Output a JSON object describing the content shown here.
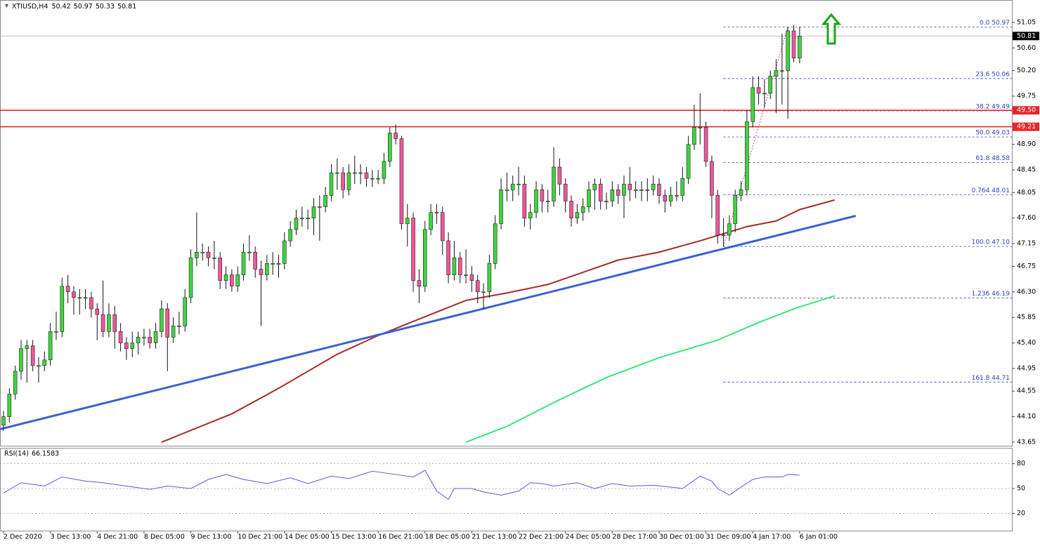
{
  "chart_data": {
    "type": "candlestick",
    "title": "XTIUSD,H4",
    "categories": [
      "2 Dec 2020",
      null,
      null,
      null,
      null,
      null,
      null,
      null,
      "3 Dec 13:00",
      null,
      null,
      null,
      null,
      null,
      null,
      null,
      "4 Dec 21:00",
      null,
      null,
      null,
      null,
      null,
      null,
      null,
      "8 Dec 05:00",
      null,
      null,
      null,
      null,
      null,
      null,
      null,
      "9 Dec 13:00",
      null,
      null,
      null,
      null,
      null,
      null,
      null,
      "10 Dec 21:00",
      null,
      null,
      null,
      null,
      null,
      null,
      null,
      "14 Dec 05:00",
      null,
      null,
      null,
      null,
      null,
      null,
      null,
      "15 Dec 13:00",
      null,
      null,
      null,
      null,
      null,
      null,
      null,
      "16 Dec 21:00",
      null,
      null,
      null,
      null,
      null,
      null,
      null,
      "18 Dec 05:00",
      null,
      null,
      null,
      null,
      null,
      null,
      null,
      "21 Dec 13:00",
      null,
      null,
      null,
      null,
      null,
      null,
      null,
      "22 Dec 21:00",
      null,
      null,
      null,
      null,
      null,
      null,
      null,
      "24 Dec 05:00",
      null,
      null,
      null,
      null,
      null,
      null,
      null,
      "28 Dec 17:00",
      null,
      null,
      null,
      null,
      null,
      null,
      null,
      "30 Dec 01:00",
      null,
      null,
      null,
      null,
      null,
      null,
      null,
      "31 Dec 09:00",
      null,
      null,
      null,
      null,
      null,
      null,
      null,
      "4 Jan 17:00",
      null,
      null,
      null,
      null,
      null,
      null,
      null,
      "6 Jan 01:00"
    ],
    "candles": [
      [
        43.95,
        44.2,
        43.85,
        44.1
      ],
      [
        44.1,
        44.6,
        44.0,
        44.5
      ],
      [
        44.5,
        45.0,
        44.4,
        44.9
      ],
      [
        44.9,
        45.45,
        44.75,
        45.3
      ],
      [
        45.3,
        45.45,
        44.7,
        45.35
      ],
      [
        45.35,
        45.45,
        44.9,
        45.0
      ],
      [
        45.0,
        45.15,
        44.7,
        45.0
      ],
      [
        45.0,
        45.25,
        44.9,
        45.1
      ],
      [
        45.1,
        45.75,
        45.0,
        45.6
      ],
      [
        45.6,
        45.95,
        45.45,
        45.6
      ],
      [
        45.6,
        46.55,
        45.5,
        46.4
      ],
      [
        46.4,
        46.6,
        46.1,
        46.3
      ],
      [
        46.3,
        46.4,
        45.9,
        46.2
      ],
      [
        46.2,
        46.35,
        45.9,
        46.2
      ],
      [
        46.2,
        46.35,
        46.0,
        46.2
      ],
      [
        46.2,
        46.3,
        45.85,
        46.0
      ],
      [
        46.0,
        46.1,
        45.45,
        45.9
      ],
      [
        45.9,
        46.5,
        45.5,
        45.6
      ],
      [
        45.6,
        46.1,
        45.5,
        45.9
      ],
      [
        45.9,
        46.05,
        45.3,
        45.6
      ],
      [
        45.6,
        45.75,
        45.25,
        45.4
      ],
      [
        45.4,
        45.5,
        45.1,
        45.3
      ],
      [
        45.3,
        45.6,
        45.15,
        45.4
      ],
      [
        45.4,
        45.6,
        45.2,
        45.5
      ],
      [
        45.5,
        45.65,
        45.35,
        45.5
      ],
      [
        45.5,
        45.65,
        45.3,
        45.4
      ],
      [
        45.4,
        45.75,
        45.3,
        45.6
      ],
      [
        45.6,
        46.15,
        45.5,
        46.0
      ],
      [
        46.0,
        46.1,
        44.9,
        45.5
      ],
      [
        45.5,
        45.85,
        45.4,
        45.7
      ],
      [
        45.7,
        45.95,
        45.55,
        45.7
      ],
      [
        45.7,
        46.35,
        45.6,
        46.2
      ],
      [
        46.2,
        47.05,
        46.1,
        46.9
      ],
      [
        46.9,
        47.7,
        46.75,
        47.0
      ],
      [
        47.0,
        47.15,
        46.85,
        47.0
      ],
      [
        47.0,
        47.1,
        46.75,
        46.9
      ],
      [
        46.9,
        47.2,
        46.7,
        46.9
      ],
      [
        46.9,
        47.0,
        46.35,
        46.5
      ],
      [
        46.5,
        46.75,
        46.35,
        46.6
      ],
      [
        46.6,
        46.7,
        46.3,
        46.4
      ],
      [
        46.4,
        46.75,
        46.3,
        46.6
      ],
      [
        46.6,
        47.15,
        46.5,
        47.0
      ],
      [
        47.0,
        47.3,
        46.85,
        47.0
      ],
      [
        47.0,
        47.1,
        46.55,
        46.7
      ],
      [
        46.7,
        46.85,
        45.7,
        46.6
      ],
      [
        46.6,
        46.95,
        46.5,
        46.8
      ],
      [
        46.8,
        47.0,
        46.6,
        46.8
      ],
      [
        46.8,
        46.95,
        46.55,
        46.8
      ],
      [
        46.8,
        47.35,
        46.7,
        47.2
      ],
      [
        47.2,
        47.55,
        47.1,
        47.4
      ],
      [
        47.4,
        47.75,
        47.3,
        47.6
      ],
      [
        47.6,
        47.8,
        47.45,
        47.6
      ],
      [
        47.6,
        47.75,
        47.4,
        47.6
      ],
      [
        47.6,
        47.95,
        47.3,
        47.8
      ],
      [
        47.8,
        48.0,
        47.2,
        47.8
      ],
      [
        47.8,
        48.15,
        47.7,
        48.0
      ],
      [
        48.0,
        48.55,
        47.9,
        48.4
      ],
      [
        48.4,
        48.65,
        48.1,
        48.4
      ],
      [
        48.4,
        48.5,
        47.95,
        48.1
      ],
      [
        48.1,
        48.55,
        48.0,
        48.4
      ],
      [
        48.4,
        48.7,
        48.2,
        48.4
      ],
      [
        48.4,
        48.55,
        48.2,
        48.4
      ],
      [
        48.4,
        48.5,
        48.15,
        48.3
      ],
      [
        48.3,
        48.45,
        48.15,
        48.3
      ],
      [
        48.3,
        48.45,
        48.2,
        48.3
      ],
      [
        48.3,
        48.75,
        48.2,
        48.6
      ],
      [
        48.6,
        49.2,
        48.5,
        49.1
      ],
      [
        49.1,
        49.25,
        48.9,
        49.0
      ],
      [
        49.0,
        49.05,
        47.4,
        47.5
      ],
      [
        47.5,
        47.85,
        47.1,
        47.6
      ],
      [
        47.6,
        47.7,
        46.3,
        46.5
      ],
      [
        46.5,
        46.7,
        46.1,
        46.4
      ],
      [
        46.4,
        47.55,
        46.3,
        47.4
      ],
      [
        47.4,
        47.85,
        47.3,
        47.7
      ],
      [
        47.7,
        47.85,
        47.5,
        47.7
      ],
      [
        47.7,
        47.8,
        46.95,
        47.2
      ],
      [
        47.2,
        47.35,
        46.45,
        46.6
      ],
      [
        46.6,
        47.2,
        46.5,
        46.9
      ],
      [
        46.9,
        47.0,
        46.45,
        46.6
      ],
      [
        46.6,
        47.05,
        46.45,
        46.6
      ],
      [
        46.6,
        46.75,
        46.3,
        46.5
      ],
      [
        46.5,
        46.6,
        46.1,
        46.3
      ],
      [
        46.3,
        46.45,
        46.0,
        46.3
      ],
      [
        46.3,
        46.95,
        46.2,
        46.8
      ],
      [
        46.8,
        47.65,
        46.7,
        47.5
      ],
      [
        47.5,
        48.3,
        47.4,
        48.1
      ],
      [
        48.1,
        48.4,
        47.9,
        48.1
      ],
      [
        48.1,
        48.35,
        47.9,
        48.2
      ],
      [
        48.2,
        48.5,
        48.0,
        48.2
      ],
      [
        48.2,
        48.35,
        47.45,
        47.6
      ],
      [
        47.6,
        47.85,
        47.4,
        47.7
      ],
      [
        47.7,
        48.25,
        47.6,
        48.1
      ],
      [
        48.1,
        48.2,
        47.7,
        47.9
      ],
      [
        47.9,
        48.1,
        47.7,
        47.9
      ],
      [
        47.9,
        48.85,
        47.8,
        48.5
      ],
      [
        48.5,
        48.65,
        48.0,
        48.2
      ],
      [
        48.2,
        48.3,
        47.7,
        47.9
      ],
      [
        47.9,
        48.0,
        47.45,
        47.6
      ],
      [
        47.6,
        47.85,
        47.5,
        47.7
      ],
      [
        47.7,
        47.95,
        47.55,
        47.8
      ],
      [
        47.8,
        48.25,
        47.7,
        48.1
      ],
      [
        48.1,
        48.3,
        47.75,
        48.2
      ],
      [
        48.2,
        48.3,
        47.75,
        47.9
      ],
      [
        47.9,
        48.05,
        47.75,
        47.9
      ],
      [
        47.9,
        48.25,
        47.8,
        48.1
      ],
      [
        48.1,
        48.2,
        47.85,
        48.0
      ],
      [
        48.0,
        48.35,
        47.6,
        48.2
      ],
      [
        48.2,
        48.5,
        47.9,
        48.1
      ],
      [
        48.1,
        48.25,
        47.95,
        48.1
      ],
      [
        48.1,
        48.25,
        47.9,
        48.1
      ],
      [
        48.1,
        48.3,
        47.9,
        48.1
      ],
      [
        48.1,
        48.35,
        48.0,
        48.2
      ],
      [
        48.2,
        48.3,
        47.85,
        48.0
      ],
      [
        48.0,
        48.1,
        47.7,
        47.9
      ],
      [
        47.9,
        48.15,
        47.8,
        48.0
      ],
      [
        48.0,
        48.25,
        47.9,
        48.0
      ],
      [
        48.0,
        48.5,
        47.9,
        48.3
      ],
      [
        48.3,
        49.05,
        48.2,
        48.9
      ],
      [
        48.9,
        49.6,
        48.8,
        49.2
      ],
      [
        49.2,
        49.8,
        48.9,
        49.2
      ],
      [
        49.2,
        49.3,
        48.5,
        48.6
      ],
      [
        48.6,
        48.7,
        47.6,
        48.0
      ],
      [
        48.0,
        48.1,
        47.15,
        47.3
      ],
      [
        47.3,
        47.6,
        47.1,
        47.3
      ],
      [
        47.3,
        47.65,
        47.2,
        47.5
      ],
      [
        47.5,
        48.1,
        47.35,
        48.0
      ],
      [
        48.0,
        48.25,
        47.9,
        48.1
      ],
      [
        48.1,
        49.5,
        48.0,
        49.3
      ],
      [
        49.3,
        50.1,
        49.2,
        49.9
      ],
      [
        49.9,
        50.1,
        49.6,
        49.8
      ],
      [
        49.8,
        50.05,
        49.55,
        49.8
      ],
      [
        49.8,
        50.2,
        49.7,
        50.1
      ],
      [
        50.1,
        50.4,
        49.45,
        50.2
      ],
      [
        50.2,
        50.85,
        49.6,
        50.2
      ],
      [
        50.2,
        50.97,
        49.35,
        50.9
      ],
      [
        50.9,
        51.0,
        50.35,
        50.42
      ],
      [
        50.42,
        50.97,
        50.33,
        50.81
      ]
    ],
    "up_color": "#3fd43f",
    "down_color": "#f0559c",
    "ylim": [
      43.6,
      51.42
    ],
    "yticks": [
      51.05,
      {
        "value": 50.6,
        "label": "50.60"
      },
      {
        "value": 50.2,
        "label": "50.20"
      },
      49.75,
      {
        "value": 48.9,
        "label": "48.90"
      },
      48.45,
      48.05,
      {
        "value": 47.6,
        "label": "47.60"
      },
      47.15,
      46.75,
      {
        "value": 46.3,
        "label": "46.30"
      },
      45.85,
      {
        "value": 45.4,
        "label": "45.40"
      },
      44.95,
      44.55,
      {
        "value": 44.1,
        "label": "44.10"
      },
      43.65
    ],
    "lines": [
      {
        "color": "#a52a2a",
        "x": [
          27,
          39,
          47,
          57,
          64,
          71,
          79,
          86,
          93,
          100,
          105,
          112,
          119,
          127,
          132,
          136,
          142
        ],
        "values": [
          43.65,
          44.15,
          44.6,
          45.2,
          45.53,
          45.82,
          46.15,
          46.28,
          46.43,
          46.68,
          46.86,
          47.0,
          47.2,
          47.45,
          47.55,
          47.75,
          47.92
        ]
      },
      {
        "color": "#33e87a",
        "x": [
          79,
          86,
          95,
          103,
          112,
          122,
          129,
          135,
          142
        ],
        "values": [
          43.65,
          43.93,
          44.4,
          44.79,
          45.14,
          45.45,
          45.76,
          46.0,
          46.23
        ]
      },
      {
        "color": "#3a62d0",
        "x": [
          -0.6,
          145.6
        ],
        "values": [
          43.88,
          47.64
        ]
      }
    ],
    "hlines": {
      "color": "#e8262a",
      "levels": [
        {
          "value": 49.5,
          "label": "49.50"
        },
        49.21
      ]
    },
    "fib": {
      "color": "#2c3fbf",
      "trend_color": "#d0506a",
      "x": [
        123,
        134
      ],
      "values": [
        47.1,
        50.97
      ],
      "levels": [
        {
          "value": 50.97,
          "label": "0.0 50.97"
        },
        {
          "value": 50.06,
          "label": "23.6 50.06"
        },
        {
          "value": 49.49,
          "label": "38.2 49.49"
        },
        {
          "value": 49.03,
          "label": "50.0 49.03"
        },
        {
          "value": 48.58,
          "label": "61.8 48.58"
        },
        {
          "value": 48.01,
          "label": "0.764 48.01"
        },
        {
          "value": 47.1,
          "label": "100.0 47.10"
        },
        {
          "value": 46.19,
          "label": "1.236 46.19"
        },
        {
          "value": 44.71,
          "label": "161.8 44.71"
        }
      ]
    },
    "rsi": {
      "name": "RSI(14)",
      "color": "#6f52d6",
      "ylim": [
        0,
        100
      ],
      "yticks": [
        80,
        50,
        20
      ],
      "x": [
        0,
        3,
        7,
        10,
        14,
        17,
        21,
        25,
        28,
        32,
        35,
        38,
        41,
        45,
        49,
        52,
        56,
        59,
        63,
        67,
        70,
        72,
        74,
        76,
        77,
        80,
        82,
        85,
        88,
        90,
        92,
        94,
        98,
        101,
        104,
        107,
        111,
        115,
        116,
        119,
        121,
        122,
        124,
        125,
        128,
        130,
        133,
        134,
        136
      ],
      "values": [
        44.5,
        57,
        53,
        64,
        59,
        57,
        53,
        49,
        53,
        50,
        61,
        67,
        61,
        56,
        63,
        56,
        65,
        62,
        71,
        67,
        64,
        72,
        47,
        37,
        50,
        50,
        46,
        42,
        47,
        57,
        56,
        53,
        57,
        50,
        56,
        53,
        54,
        51,
        50,
        65,
        59,
        50,
        42,
        47,
        61,
        64,
        64,
        67,
        66.1583
      ]
    }
  }
}
